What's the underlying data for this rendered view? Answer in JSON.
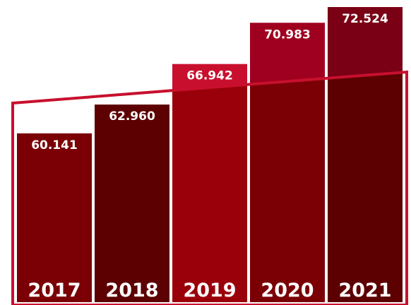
{
  "chart_data": {
    "type": "bar",
    "categories": [
      "2017",
      "2018",
      "2019",
      "2020",
      "2021"
    ],
    "values": [
      60141,
      62960,
      66942,
      70983,
      72524
    ],
    "value_labels": [
      "60.141",
      "62.960",
      "66.942",
      "70.983",
      "72.524"
    ],
    "title": "",
    "xlabel": "",
    "ylabel": "",
    "grid": false,
    "legend": "none",
    "colors": {
      "bars_top": [
        "#a0001f",
        "#7a0015",
        "#c8102e",
        "#a0001f",
        "#7a0015"
      ],
      "bars_bottom": [
        "#7a0006",
        "#5c0002",
        "#9a0009",
        "#7a0006",
        "#5c0002"
      ],
      "overlay_stroke": "#c8102e",
      "text": "#ffffff"
    }
  }
}
